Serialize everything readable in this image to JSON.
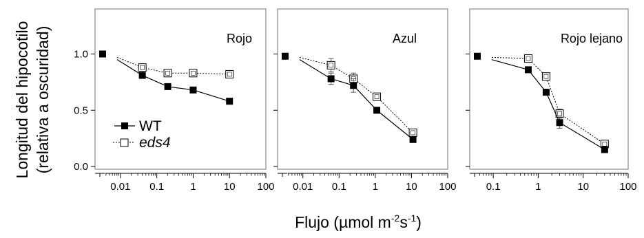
{
  "figure": {
    "ylabel_line1": "Longitud del hipocotilo",
    "ylabel_line2": "(relativa a oscuridad)",
    "xlabel_main": "Flujo (",
    "xlabel_mu": "µ",
    "xlabel_unit": "mol m",
    "xlabel_sup1": "-2",
    "xlabel_s": "s",
    "xlabel_sup2": "-1",
    "xlabel_close": ")"
  },
  "legend": {
    "wt": "WT",
    "eds4": "eds4"
  },
  "chart_data": [
    {
      "type": "line",
      "title": "Rojo",
      "x_scale": "log",
      "xlim": [
        0.002,
        100
      ],
      "ylim": [
        0,
        1.25
      ],
      "x_ticks": [
        0.01,
        0.1,
        1,
        10,
        100
      ],
      "x_tick_labels": [
        "0.01",
        "0.1",
        "1",
        "10",
        "100"
      ],
      "y_ticks": [
        0,
        0.5,
        1
      ],
      "y_tick_labels": [
        "0.0",
        "0.5",
        "1.0"
      ],
      "dark_control": 1.0,
      "series": [
        {
          "name": "WT",
          "x": [
            0.04,
            0.2,
            1,
            10
          ],
          "y": [
            0.81,
            0.71,
            0.68,
            0.58
          ],
          "err": [
            0.02,
            0.01,
            0.01,
            0.01
          ],
          "marker": "filled-square",
          "line": "solid"
        },
        {
          "name": "eds4",
          "x": [
            0.04,
            0.2,
            1,
            10
          ],
          "y": [
            0.88,
            0.83,
            0.83,
            0.82
          ],
          "err": [
            0.02,
            0.01,
            0.01,
            0.02
          ],
          "marker": "open-square",
          "line": "dotted"
        }
      ]
    },
    {
      "type": "line",
      "title": "Azul",
      "x_scale": "log",
      "xlim": [
        0.002,
        100
      ],
      "ylim": [
        0,
        1.25
      ],
      "x_ticks": [
        0.01,
        0.1,
        1,
        10,
        100
      ],
      "x_tick_labels": [
        "0.01",
        "0.1",
        "1",
        "10",
        "100"
      ],
      "y_ticks": [
        0,
        0.5,
        1
      ],
      "dark_control": 0.98,
      "series": [
        {
          "name": "WT",
          "x": [
            0.06,
            0.25,
            1.1,
            11
          ],
          "y": [
            0.78,
            0.72,
            0.5,
            0.24
          ],
          "err": [
            0.05,
            0.06,
            0.02,
            0.02
          ],
          "marker": "filled-square",
          "line": "solid"
        },
        {
          "name": "eds4",
          "x": [
            0.06,
            0.25,
            1.1,
            11
          ],
          "y": [
            0.9,
            0.78,
            0.62,
            0.3
          ],
          "err": [
            0.06,
            0.05,
            0.02,
            0.02
          ],
          "marker": "open-square",
          "line": "dotted"
        }
      ]
    },
    {
      "type": "line",
      "title": "Rojo lejano",
      "x_scale": "log",
      "xlim": [
        0.03,
        100
      ],
      "ylim": [
        0,
        1.25
      ],
      "x_ticks": [
        0.1,
        1,
        10,
        100
      ],
      "x_tick_labels": [
        "0.1",
        "1",
        "10",
        "100"
      ],
      "y_ticks": [
        0,
        0.5,
        1
      ],
      "dark_control": 0.98,
      "series": [
        {
          "name": "WT",
          "x": [
            0.6,
            1.5,
            3,
            30
          ],
          "y": [
            0.86,
            0.66,
            0.39,
            0.15
          ],
          "err": [
            0.02,
            0.02,
            0.05,
            0.02
          ],
          "marker": "filled-square",
          "line": "solid"
        },
        {
          "name": "eds4",
          "x": [
            0.6,
            1.5,
            3,
            30
          ],
          "y": [
            0.96,
            0.8,
            0.47,
            0.2
          ],
          "err": [
            0.02,
            0.03,
            0.04,
            0.02
          ],
          "marker": "open-square",
          "line": "dotted"
        }
      ]
    }
  ]
}
